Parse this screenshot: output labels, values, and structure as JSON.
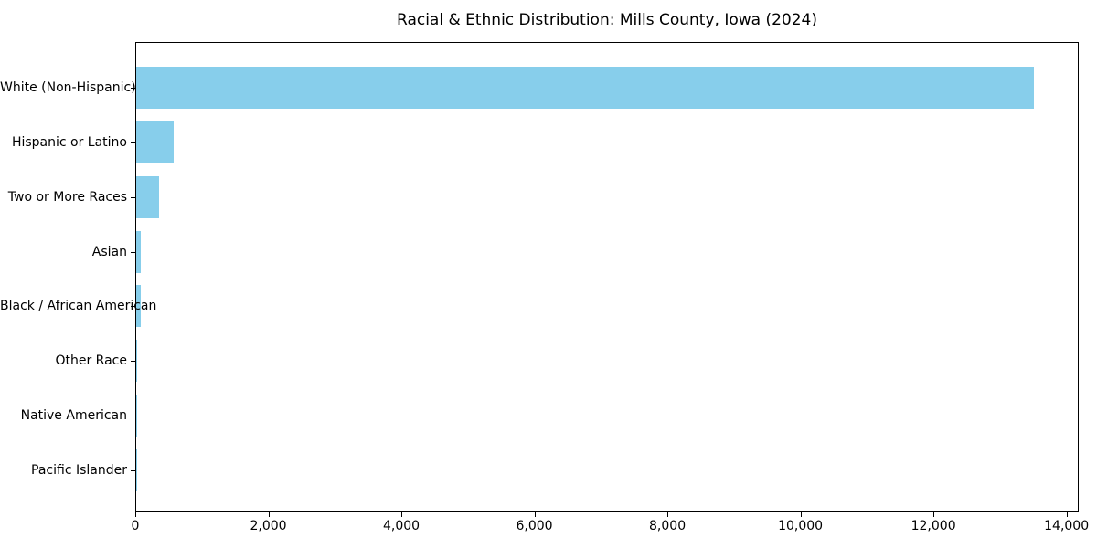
{
  "chart_data": {
    "type": "bar",
    "orientation": "horizontal",
    "title": "Racial & Ethnic Distribution: Mills County, Iowa (2024)",
    "categories": [
      "White (Non-Hispanic)",
      "Hispanic or Latino",
      "Two or More Races",
      "Asian",
      "Black / African American",
      "Other Race",
      "Native American",
      "Pacific Islander"
    ],
    "values": [
      13500,
      560,
      345,
      70,
      75,
      15,
      10,
      5
    ],
    "xlabel": "",
    "ylabel": "",
    "xlim": [
      0,
      14170
    ],
    "xticks": [
      0,
      2000,
      4000,
      6000,
      8000,
      10000,
      12000,
      14000
    ],
    "xtick_format": "thousands-comma",
    "bar_color": "#87CEEB",
    "axis_color": "#000000",
    "text_color": "#000000",
    "background_color": "#FFFFFF",
    "grid": false,
    "legend": null
  }
}
